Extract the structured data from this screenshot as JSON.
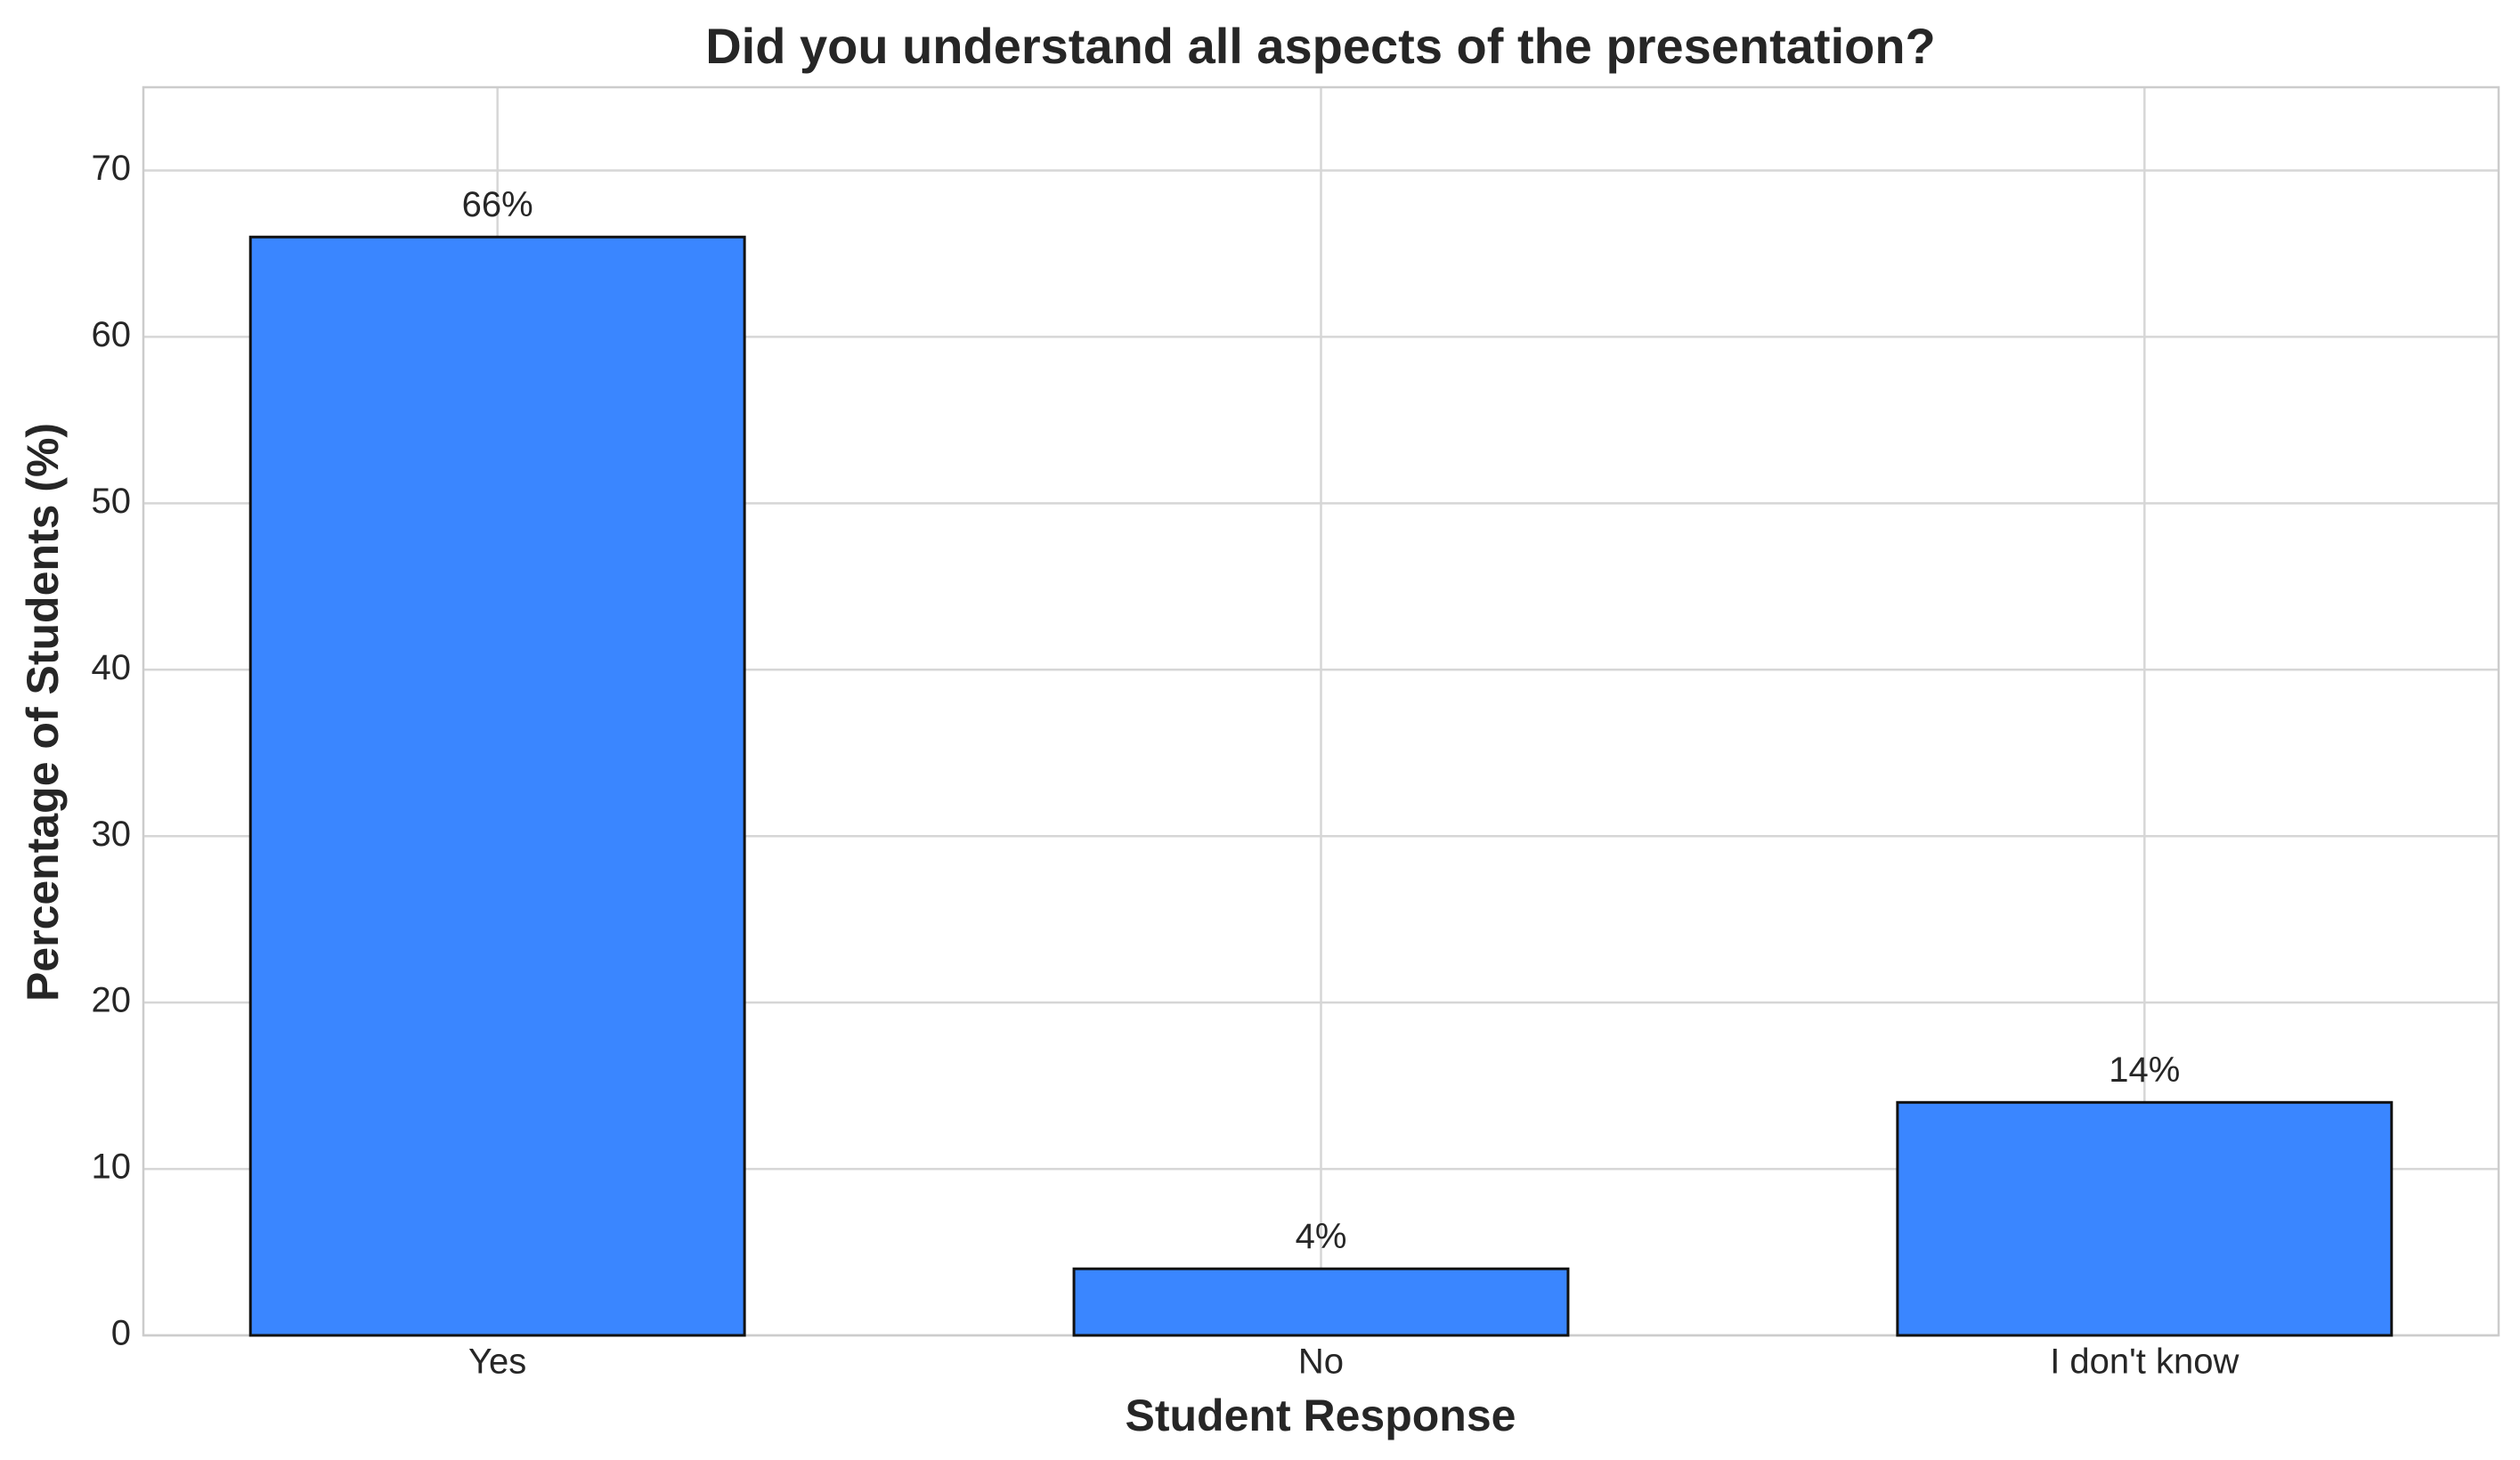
{
  "chart_data": {
    "type": "bar",
    "title": "Did you understand all aspects of the presentation?",
    "xlabel": "Student Response",
    "ylabel": "Percentage of Students (%)",
    "categories": [
      "Yes",
      "No",
      "I don't know"
    ],
    "values": [
      66,
      4,
      14
    ],
    "value_labels": [
      "66%",
      "4%",
      "14%"
    ],
    "color": "#3a86ff",
    "ylim": [
      0,
      75
    ],
    "yticks": [
      0,
      10,
      20,
      30,
      40,
      50,
      60,
      70
    ],
    "grid": true
  }
}
